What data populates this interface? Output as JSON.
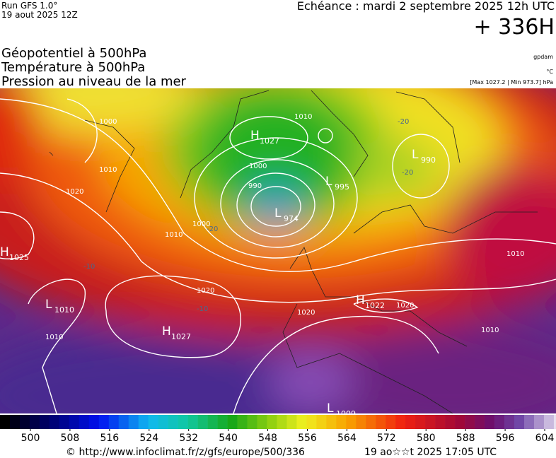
{
  "header": {
    "run": "Run GFS 1.0°",
    "run_date": "19 aout 2025 12Z",
    "valid": "Echéance : mardi 2 septembre 2025 12h UTC",
    "lead": "+ 336H",
    "fields": [
      "Géopotentiel à 500hPa",
      "Température à 500hPa",
      "Pression au niveau de la mer"
    ],
    "units": [
      "gpdam",
      "°C",
      "[Max 1027.2 | Min 973.7] hPa"
    ]
  },
  "map": {
    "pressure_centers": [
      {
        "letter": "H",
        "value": "1027"
      },
      {
        "letter": "L",
        "value": "995"
      },
      {
        "letter": "L",
        "value": "990"
      },
      {
        "letter": "L",
        "value": "974"
      },
      {
        "letter": "H",
        "value": "1025"
      },
      {
        "letter": "L",
        "value": "1010"
      },
      {
        "letter": "H",
        "value": "1027"
      },
      {
        "letter": "H",
        "value": "1022"
      },
      {
        "letter": "L",
        "value": "1009"
      }
    ],
    "isobar_labels": [
      "1000",
      "1010",
      "1020",
      "1000",
      "990",
      "1000",
      "1010",
      "1020",
      "1020",
      "1020",
      "1010",
      "1010",
      "1010",
      "1010"
    ],
    "temperature_labels": [
      "-20",
      "-20",
      "-10",
      "-10",
      "-20"
    ]
  },
  "colorbar": {
    "ticks": [
      500,
      508,
      516,
      524,
      532,
      540,
      548,
      556,
      564,
      572,
      580,
      588,
      596,
      604
    ]
  },
  "footer": {
    "source": "© http://www.infoclimat.fr/z/gfs/europe/500/336",
    "generated": "19 ao☆☆t 2025 17:05 UTC"
  }
}
